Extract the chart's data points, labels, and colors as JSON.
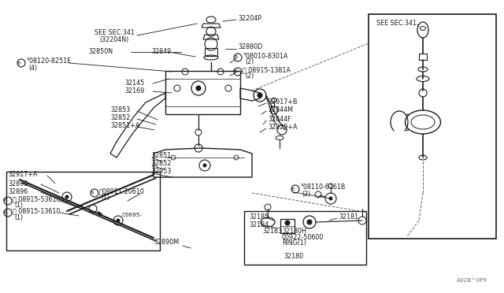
{
  "bg_color": "#ffffff",
  "fig_width": 6.4,
  "fig_height": 3.72,
  "dpi": 100,
  "part_code": "A32B^0P9",
  "dark": "#1a1a1a",
  "gray": "#666666",
  "labels": {
    "see_sec_341_top": "SEE SEC.341",
    "see_sec_341_sub": "(32204N)",
    "see_sec_341_right": "SEE SEC.341",
    "p32204P": "32204P",
    "p32880D": "32880D",
    "p32850N": "32850N",
    "p32849": "32849",
    "p08120": "°08120-8251E",
    "p08120_qty": "(4)",
    "p08010": "°08010-8301A",
    "p08010_qty": "(2)",
    "p08915_1381A": "ⓔ 08915-1381A",
    "p08915_1381A_qty": "(2)",
    "p32145": "32145",
    "p32169": "32169",
    "p32853a": "32853",
    "p32852a": "32852",
    "p32851A": "32851+A",
    "p32917B": "32917+B",
    "p32844M": "32844M",
    "p32844F": "32844F",
    "p32829A": "32829+A",
    "p32851b": "32851",
    "p32852b": "32852",
    "p32953": "32953",
    "p32917A": "32917+A",
    "p32890": "32890",
    "p32896": "32896",
    "p08915_53610": "ⓔ 08915-53610",
    "p08915_53610_qty": "(1)",
    "p08915_13610": "ⓔ 08915-13610",
    "p08915_13610_qty": "(1)",
    "p08911": "ⓝ08911-20610",
    "p08911_qty": "(1)",
    "pC0695": "C0695-",
    "p32890M": "32890M",
    "p08110": "°08110-6161B",
    "p08110_qty": "(2)",
    "p32185": "32185",
    "p32181": "32181",
    "p32184": "32184",
    "p32183": "32183",
    "p32180H": "32180H",
    "p00922": "00922-50600",
    "ring": "RING(1)",
    "p32180": "32180"
  }
}
